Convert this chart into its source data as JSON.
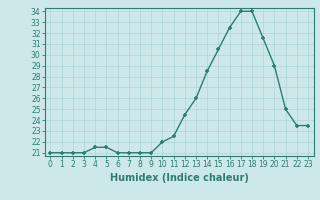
{
  "x": [
    0,
    1,
    2,
    3,
    4,
    5,
    6,
    7,
    8,
    9,
    10,
    11,
    12,
    13,
    14,
    15,
    16,
    17,
    18,
    19,
    20,
    21,
    22,
    23
  ],
  "y": [
    21,
    21,
    21,
    21,
    21.5,
    21.5,
    21,
    21,
    21,
    21,
    22,
    22.5,
    24.5,
    26,
    28.5,
    30.5,
    32.5,
    34,
    34,
    31.5,
    29,
    25,
    23.5,
    23.5
  ],
  "xlabel": "Humidex (Indice chaleur)",
  "line_color": "#2e7d6e",
  "marker": "+",
  "bg_color": "#cce8e8",
  "grid_color": "#afd4d4",
  "ylim": [
    20.7,
    34.3
  ],
  "xlim": [
    -0.5,
    23.5
  ],
  "yticks": [
    21,
    22,
    23,
    24,
    25,
    26,
    27,
    28,
    29,
    30,
    31,
    32,
    33,
    34
  ],
  "xticks": [
    0,
    1,
    2,
    3,
    4,
    5,
    6,
    7,
    8,
    9,
    10,
    11,
    12,
    13,
    14,
    15,
    16,
    17,
    18,
    19,
    20,
    21,
    22,
    23
  ],
  "tick_fontsize": 5.5,
  "xlabel_fontsize": 7,
  "marker_size": 3.5,
  "linewidth": 1.0
}
